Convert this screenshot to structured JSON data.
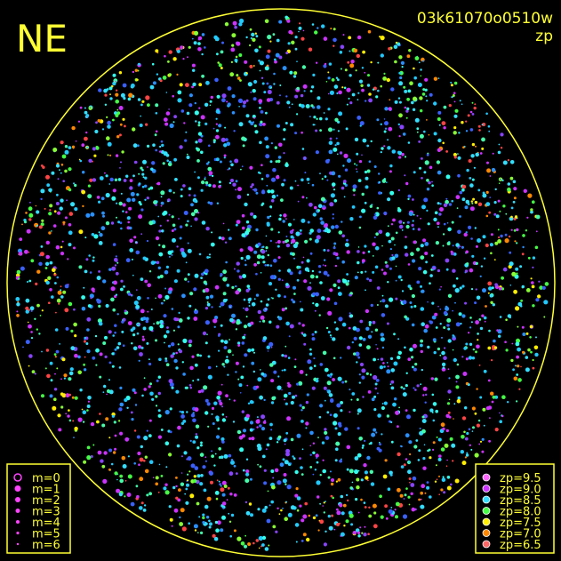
{
  "header": {
    "direction": "NE",
    "frame": "03k61070o0510w",
    "mode": "zp"
  },
  "legend_magnitude": [
    {
      "label": "m=0",
      "size": 4
    },
    {
      "label": "m=1",
      "size": 3.5
    },
    {
      "label": "m=2",
      "size": 3
    },
    {
      "label": "m=3",
      "size": 2.5
    },
    {
      "label": "m=4",
      "size": 2
    },
    {
      "label": "m=5",
      "size": 1.6
    },
    {
      "label": "m=6",
      "size": 1.2
    }
  ],
  "legend_zp": [
    {
      "label": "zp=9.5",
      "color": "#ff66ff"
    },
    {
      "label": "zp=9.0",
      "color": "#cc33ff"
    },
    {
      "label": "zp=8.5",
      "color": "#33ddff"
    },
    {
      "label": "zp=8.0",
      "color": "#44ff44"
    },
    {
      "label": "zp=7.5",
      "color": "#ffee00"
    },
    {
      "label": "zp=7.0",
      "color": "#ff8800"
    },
    {
      "label": "zp=6.5",
      "color": "#ff6666"
    }
  ]
}
